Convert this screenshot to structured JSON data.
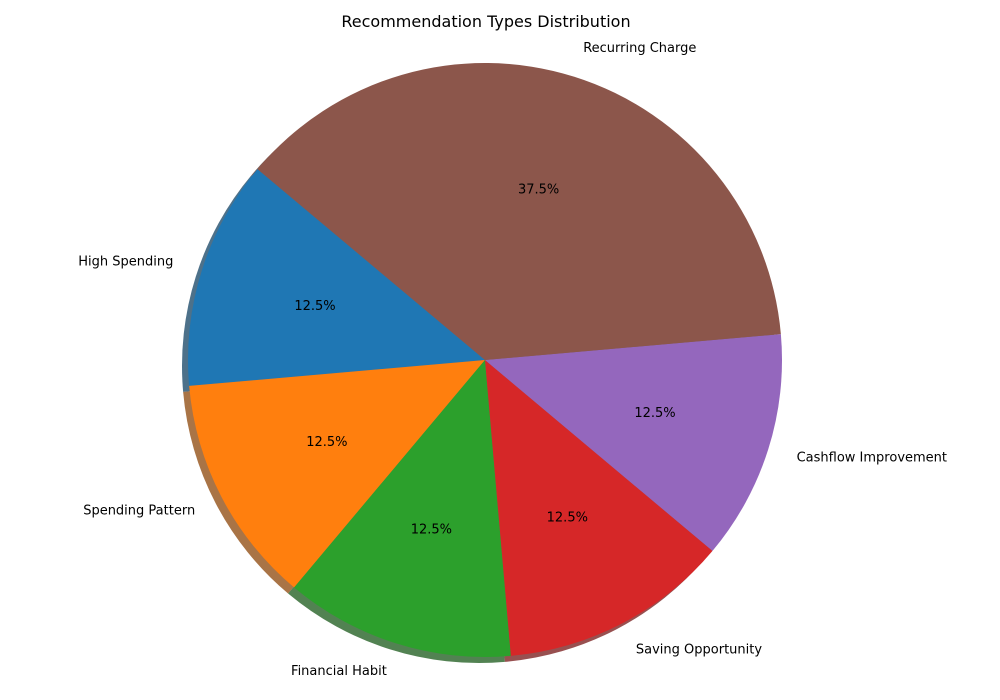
{
  "chart_data": {
    "type": "pie",
    "title": "Recommendation Types Distribution",
    "start_angle_deg": 140,
    "direction": "counterclockwise",
    "shadow": true,
    "slices": [
      {
        "label": "High Spending",
        "value": 12.5,
        "pct_label": "12.5%",
        "color": "#1f77b4"
      },
      {
        "label": "Spending Pattern",
        "value": 12.5,
        "pct_label": "12.5%",
        "color": "#ff7f0e"
      },
      {
        "label": "Financial Habit",
        "value": 12.5,
        "pct_label": "12.5%",
        "color": "#2ca02c"
      },
      {
        "label": "Saving Opportunity",
        "value": 12.5,
        "pct_label": "12.5%",
        "color": "#d62728"
      },
      {
        "label": "Cashflow Improvement",
        "value": 12.5,
        "pct_label": "12.5%",
        "color": "#9467bd"
      },
      {
        "label": "Recurring Charge",
        "value": 37.5,
        "pct_label": "37.5%",
        "color": "#8c564b"
      }
    ]
  }
}
